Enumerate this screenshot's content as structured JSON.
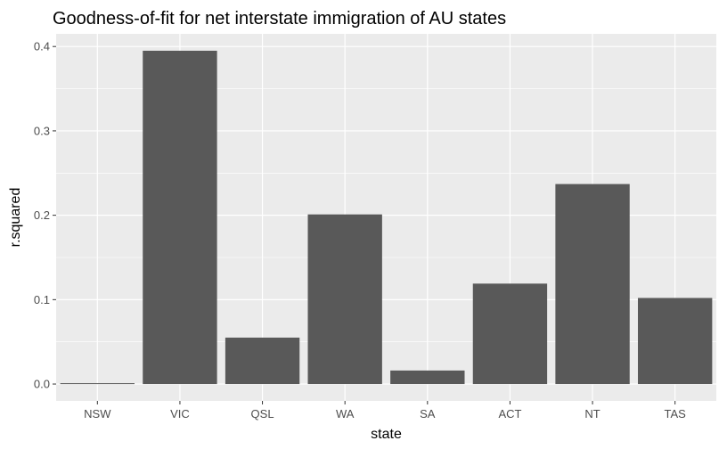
{
  "chart_data": {
    "type": "bar",
    "title": "Goodness-of-fit for net interstate immigration of AU states",
    "xlabel": "state",
    "ylabel": "r.squared",
    "categories": [
      "NSW",
      "VIC",
      "QSL",
      "WA",
      "SA",
      "ACT",
      "NT",
      "TAS"
    ],
    "values": [
      0.001,
      0.395,
      0.055,
      0.201,
      0.016,
      0.119,
      0.237,
      0.102
    ],
    "ylim": [
      -0.02,
      0.415
    ],
    "yticks": [
      0.0,
      0.1,
      0.2,
      0.3,
      0.4
    ],
    "ytick_labels": [
      "0.0",
      "0.1",
      "0.2",
      "0.3",
      "0.4"
    ],
    "grid": true,
    "colors": {
      "panel_background": "#ebebeb",
      "grid_major": "#ffffff",
      "bar_fill": "#595959"
    }
  }
}
